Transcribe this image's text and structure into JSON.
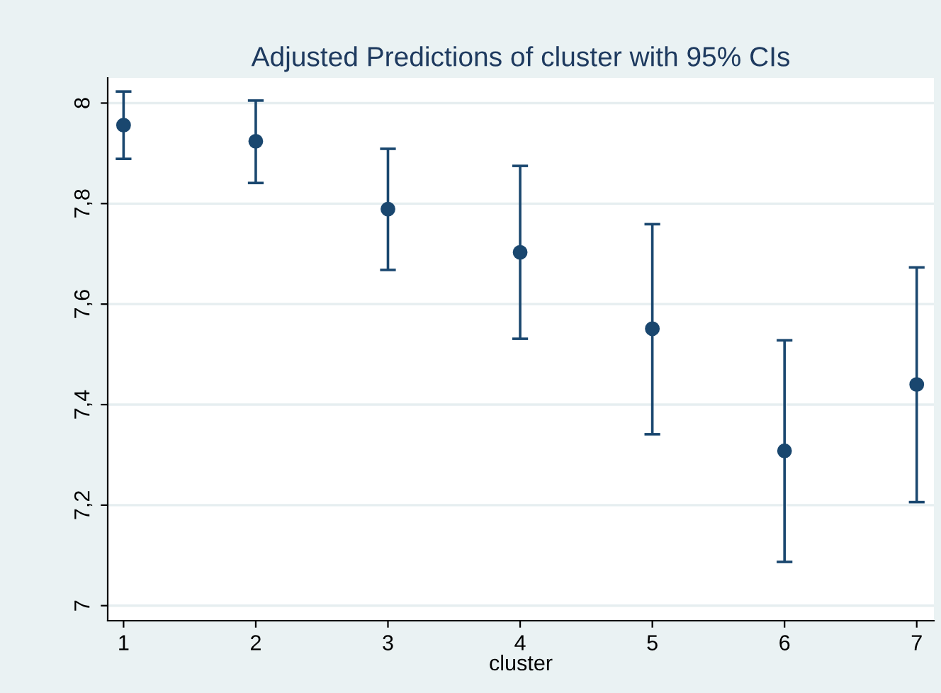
{
  "chart_data": {
    "type": "scatter",
    "title": "Adjusted Predictions of cluster with 95% CIs",
    "xlabel": "cluster",
    "x": [
      1,
      2,
      3,
      4,
      5,
      6,
      7
    ],
    "series": [
      {
        "color": "#1a476f",
        "values": [
          7.956,
          7.924,
          7.789,
          7.703,
          7.551,
          7.308,
          7.44
        ],
        "errors": [
          [
            7.889,
            8.023
          ],
          [
            7.841,
            8.005
          ],
          [
            7.668,
            7.909
          ],
          [
            7.531,
            7.875
          ],
          [
            7.341,
            7.759
          ],
          [
            7.087,
            7.528
          ],
          [
            7.206,
            7.673
          ]
        ]
      }
    ],
    "xlim": [
      0.88,
      7.13
    ],
    "xticks": [
      1,
      2,
      3,
      4,
      5,
      6,
      7
    ],
    "ylim": [
      6.97,
      8.05
    ],
    "yticks": [
      {
        "value": 7,
        "label": "7"
      },
      {
        "value": 7.2,
        "label": "7,2"
      },
      {
        "value": 7.4,
        "label": "7,4"
      },
      {
        "value": 7.6,
        "label": "7,6"
      },
      {
        "value": 7.8,
        "label": "7,8"
      },
      {
        "value": 8,
        "label": "8"
      }
    ],
    "grid": "y",
    "marker": "circle"
  }
}
